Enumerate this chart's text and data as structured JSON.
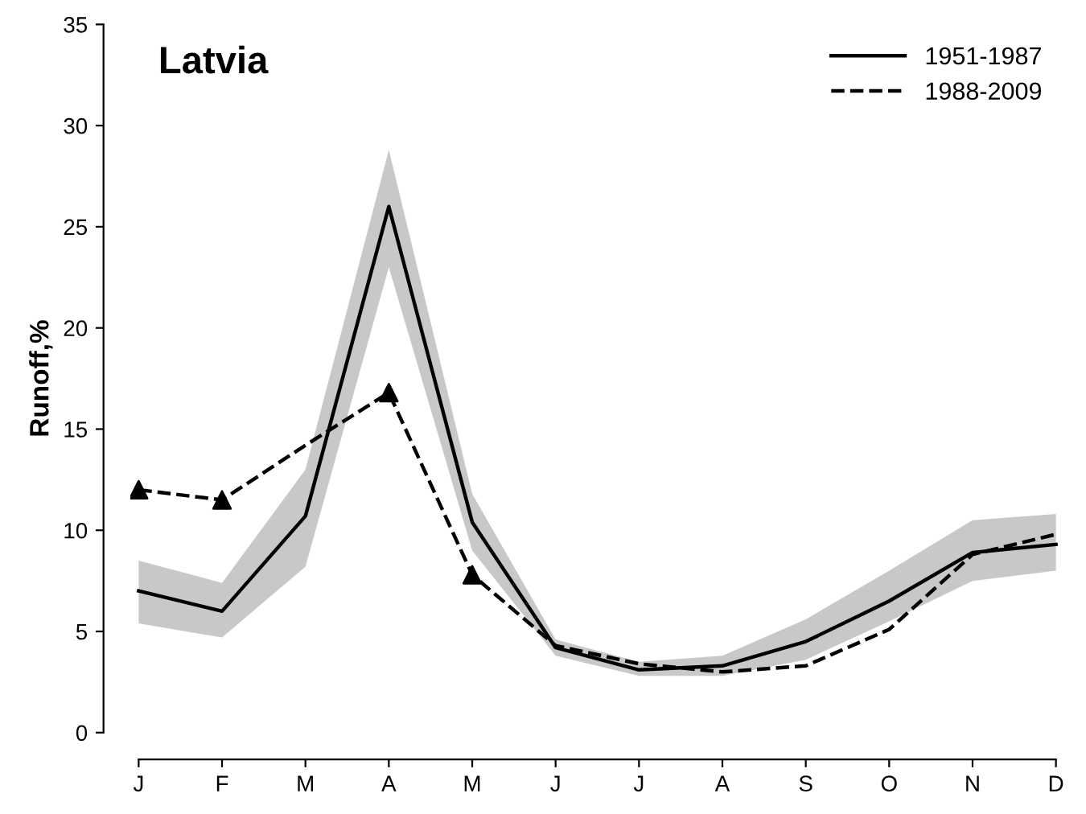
{
  "chart_data": {
    "type": "line",
    "title": "Latvia",
    "ylabel": "Runoff,%",
    "categories": [
      "J",
      "F",
      "M",
      "A",
      "M",
      "J",
      "J",
      "A",
      "S",
      "O",
      "N",
      "D"
    ],
    "series": [
      {
        "name": "1951-1987",
        "color": "#000000",
        "line_style": "solid",
        "values": [
          7.0,
          6.0,
          10.7,
          26.0,
          10.4,
          4.2,
          3.1,
          3.3,
          4.5,
          6.5,
          8.9,
          9.3
        ],
        "lower": [
          5.4,
          4.7,
          8.2,
          23.0,
          9.0,
          3.8,
          2.8,
          2.8,
          3.6,
          5.5,
          7.5,
          8.0
        ],
        "upper": [
          8.5,
          7.4,
          13.0,
          28.8,
          11.8,
          4.6,
          3.5,
          3.8,
          5.6,
          8.0,
          10.5,
          10.8
        ]
      },
      {
        "name": "1988-2009",
        "color": "#000000",
        "line_style": "dashed",
        "values": [
          12.0,
          11.5,
          14.2,
          16.8,
          7.8,
          4.3,
          3.4,
          3.0,
          3.3,
          5.1,
          8.8,
          9.8
        ]
      },
      {
        "type": "scatter",
        "color": "#000000",
        "marker": "triangle",
        "values": [
          12.0,
          11.5,
          null,
          16.8,
          7.8,
          null,
          null,
          null,
          null,
          null,
          null,
          null
        ]
      }
    ],
    "ylim": [
      0,
      35
    ],
    "yticks": [
      0,
      5,
      10,
      15,
      20,
      25,
      30,
      35
    ],
    "grid": false,
    "legend": "top right"
  }
}
